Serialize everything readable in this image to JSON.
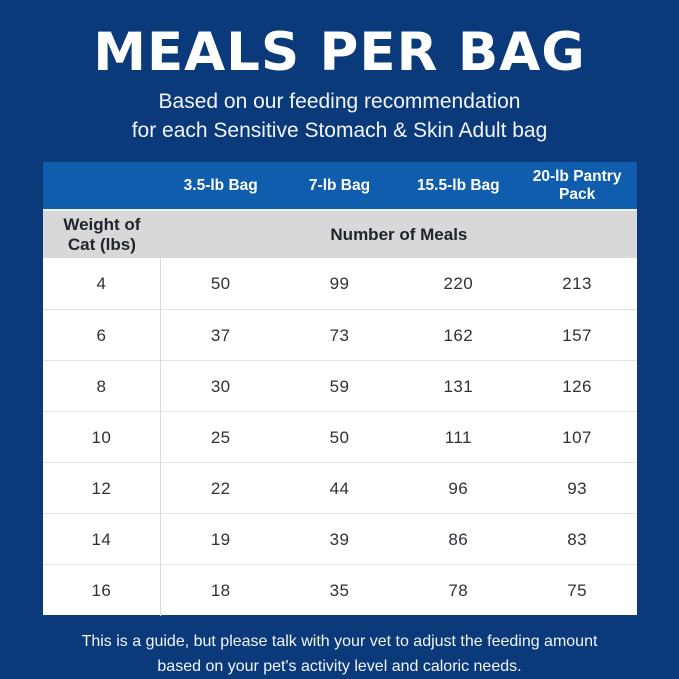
{
  "page": {
    "background_color": "#0a3a7a",
    "title": "MEALS PER BAG",
    "subtitle_line1": "Based on our feeding recommendation",
    "subtitle_line2": "for each Sensitive Stomach & Skin Adult bag",
    "footer_line1": "This is a guide, but please talk with your vet to adjust the feeding amount",
    "footer_line2": "based on your pet's activity level and caloric needs."
  },
  "table": {
    "header_background": "#0f5dac",
    "subheader_background": "#d8d8d8",
    "columns": [
      "3.5-lb Bag",
      "7-lb Bag",
      "15.5-lb Bag",
      "20-lb Pantry Pack"
    ],
    "row_header_label": "Weight of Cat (lbs)",
    "meals_label": "Number of Meals",
    "rows": [
      {
        "weight": 4,
        "meals": [
          50,
          99,
          220,
          213
        ]
      },
      {
        "weight": 6,
        "meals": [
          37,
          73,
          162,
          157
        ]
      },
      {
        "weight": 8,
        "meals": [
          30,
          59,
          131,
          126
        ]
      },
      {
        "weight": 10,
        "meals": [
          25,
          50,
          111,
          107
        ]
      },
      {
        "weight": 12,
        "meals": [
          22,
          44,
          96,
          93
        ]
      },
      {
        "weight": 14,
        "meals": [
          19,
          39,
          86,
          83
        ]
      },
      {
        "weight": 16,
        "meals": [
          18,
          35,
          78,
          75
        ]
      }
    ]
  },
  "chart_data": {
    "type": "table",
    "title": "MEALS PER BAG",
    "subtitle": "Based on our feeding recommendation for each Sensitive Stomach & Skin Adult bag",
    "row_axis_label": "Weight of Cat (lbs)",
    "value_label": "Number of Meals",
    "columns": [
      "3.5-lb Bag",
      "7-lb Bag",
      "15.5-lb Bag",
      "20-lb Pantry Pack"
    ],
    "categories": [
      4,
      6,
      8,
      10,
      12,
      14,
      16
    ],
    "series": [
      {
        "name": "3.5-lb Bag",
        "values": [
          50,
          37,
          30,
          25,
          22,
          19,
          18
        ]
      },
      {
        "name": "7-lb Bag",
        "values": [
          99,
          73,
          59,
          50,
          44,
          39,
          35
        ]
      },
      {
        "name": "15.5-lb Bag",
        "values": [
          220,
          162,
          131,
          111,
          96,
          86,
          78
        ]
      },
      {
        "name": "20-lb Pantry Pack",
        "values": [
          213,
          157,
          126,
          107,
          93,
          83,
          75
        ]
      }
    ],
    "note": "This is a guide, but please talk with your vet to adjust the feeding amount based on your pet's activity level and caloric needs."
  }
}
